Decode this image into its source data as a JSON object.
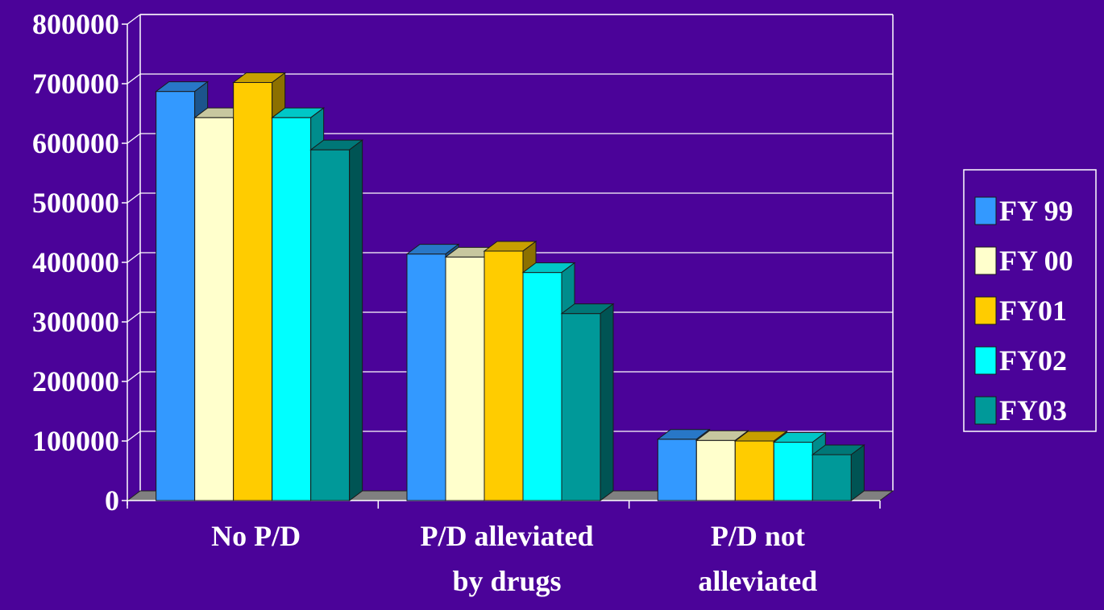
{
  "chart_data": {
    "type": "bar",
    "title": "",
    "xlabel": "",
    "ylabel": "",
    "ylim": [
      0,
      800000
    ],
    "y_ticks": [
      0,
      100000,
      200000,
      300000,
      400000,
      500000,
      600000,
      700000,
      800000
    ],
    "y_tick_labels": [
      "0",
      "100000",
      "200000",
      "300000",
      "400000",
      "500000",
      "600000",
      "700000",
      "800000"
    ],
    "grid": true,
    "legend_position": "right",
    "categories": [
      [
        "No P/D"
      ],
      [
        "P/D alleviated",
        "by drugs"
      ],
      [
        "P/D not",
        "alleviated"
      ]
    ],
    "series": [
      {
        "name": "FY 99",
        "color": "#3399ff",
        "values": [
          687000,
          414000,
          103000
        ]
      },
      {
        "name": "FY 00",
        "color": "#ffffcc",
        "values": [
          643000,
          409000,
          101000
        ]
      },
      {
        "name": "FY01",
        "color": "#ffcc00",
        "values": [
          702000,
          419000,
          100000
        ]
      },
      {
        "name": "FY02",
        "color": "#00ffff",
        "values": [
          643000,
          383000,
          98000
        ]
      },
      {
        "name": "FY03",
        "color": "#009999",
        "values": [
          589000,
          314000,
          77000
        ]
      }
    ],
    "colors": {
      "background": "#4b0399",
      "grid": "#ffffff",
      "floor": "#808080",
      "text": "#ffffff"
    }
  }
}
